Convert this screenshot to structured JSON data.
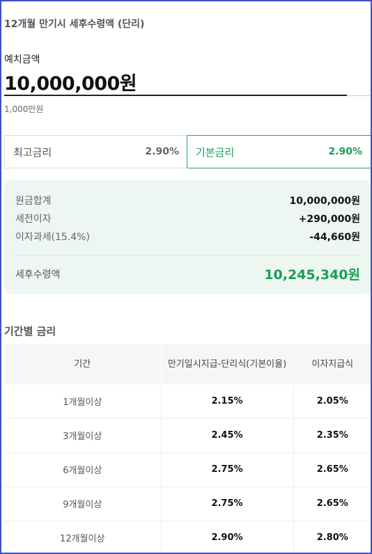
{
  "title": "12개월 만기시 세후수령액 (단리)",
  "deposit": {
    "label": "예치금액",
    "value": "10,000,000원",
    "sub": "1,000만원"
  },
  "rate_tabs": [
    {
      "label": "최고금리",
      "value": "2.90%"
    },
    {
      "label": "기본금리",
      "value": "2.90%"
    }
  ],
  "summary": {
    "principal_label": "원금합계",
    "principal_value": "10,000,000원",
    "pretax_label": "세전이자",
    "pretax_value": "+290,000원",
    "tax_label": "이자과세(15.4%)",
    "tax_value": "-44,660원",
    "total_label": "세후수령액",
    "total_value": "10,245,340원"
  },
  "period_title": "기간별 금리",
  "table": {
    "headers": [
      "기간",
      "만기일시지급-단리식(기본이율)",
      "이자지급식"
    ],
    "rows": [
      [
        "1개월이상",
        "2.15%",
        "2.05%"
      ],
      [
        "3개월이상",
        "2.45%",
        "2.35%"
      ],
      [
        "6개월이상",
        "2.75%",
        "2.65%"
      ],
      [
        "9개월이상",
        "2.75%",
        "2.65%"
      ],
      [
        "12개월이상",
        "2.90%",
        "2.80%"
      ]
    ]
  },
  "colors": {
    "accent": "#1a9e54",
    "summary_bg": "#eef6f1",
    "frame": "#3f4fc8"
  }
}
